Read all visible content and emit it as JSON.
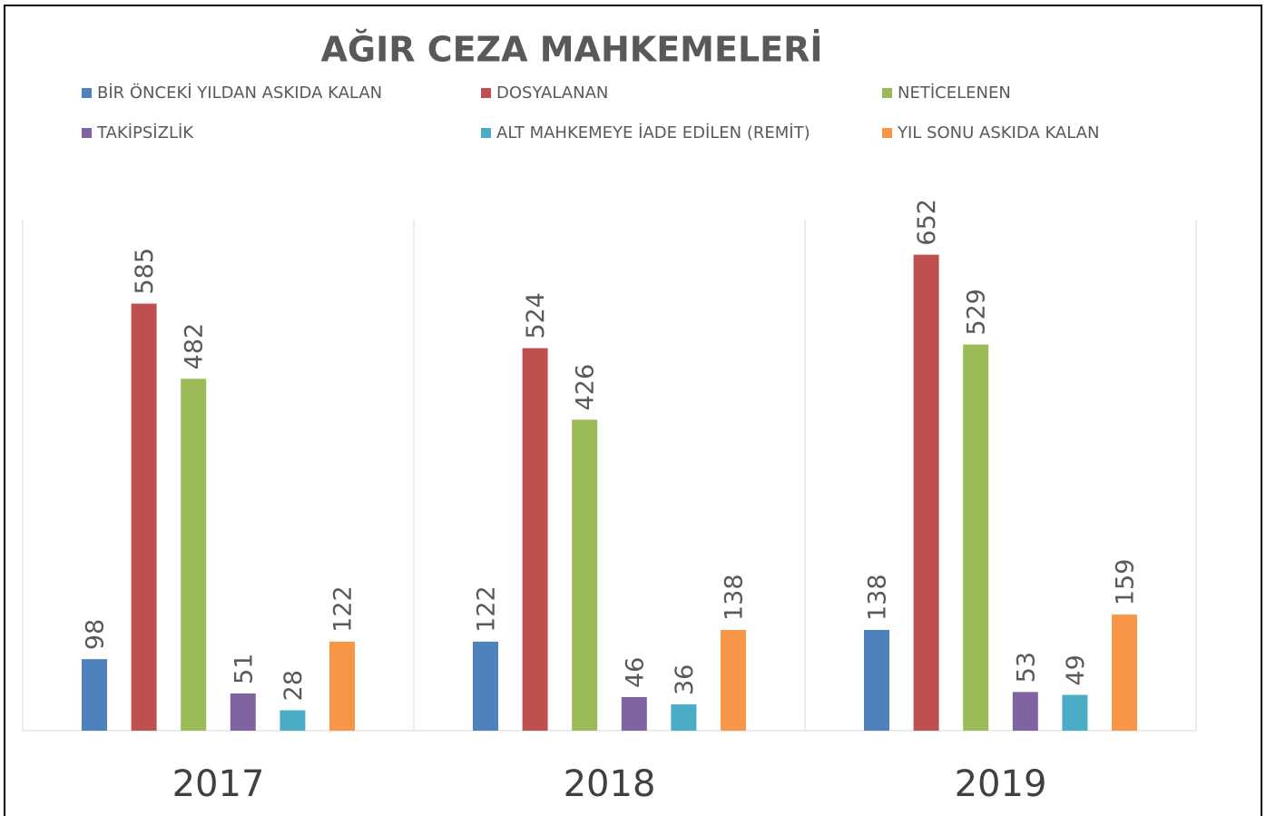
{
  "chart_data": {
    "type": "bar",
    "title": "AĞIR CEZA MAHKEMELERİ",
    "categories": [
      "2017",
      "2018",
      "2019"
    ],
    "series": [
      {
        "name": "BİR ÖNCEKİ YILDAN ASKIDA KALAN",
        "color": "#4f81bd",
        "values": [
          98,
          122,
          138
        ]
      },
      {
        "name": "DOSYALANAN",
        "color": "#c0504d",
        "values": [
          585,
          524,
          652
        ]
      },
      {
        "name": "NETİCELENEN",
        "color": "#9bbb59",
        "values": [
          482,
          426,
          529
        ]
      },
      {
        "name": "TAKİPSİZLİK",
        "color": "#8064a2",
        "values": [
          51,
          46,
          53
        ]
      },
      {
        "name": "ALT MAHKEMEYE İADE EDİLEN (REMİT)",
        "color": "#4bacc6",
        "values": [
          28,
          36,
          49
        ]
      },
      {
        "name": "YIL SONU ASKIDA KALAN",
        "color": "#f79646",
        "values": [
          122,
          138,
          159
        ]
      }
    ],
    "ylim": [
      0,
      700
    ],
    "legend": "top"
  }
}
